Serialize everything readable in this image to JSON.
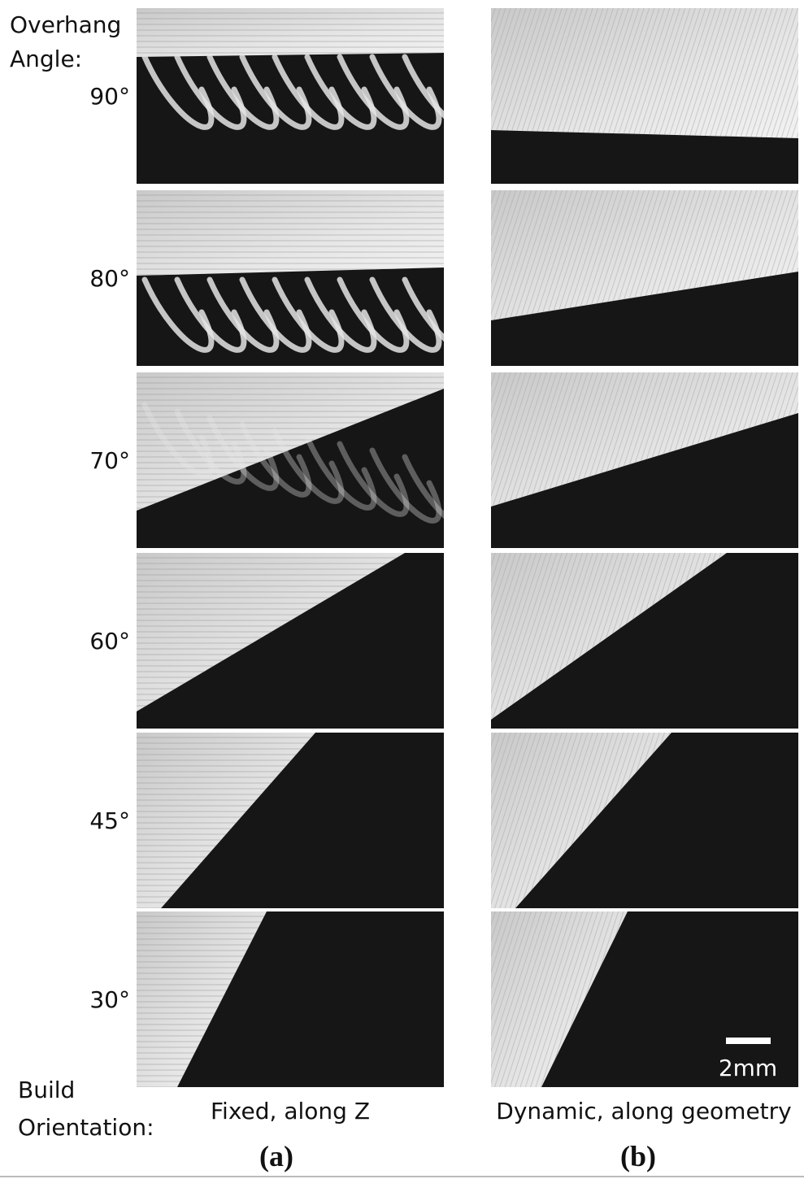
{
  "header": {
    "lines": [
      "Overhang",
      "Angle:"
    ]
  },
  "rows": [
    {
      "angle": "90°"
    },
    {
      "angle": "80°"
    },
    {
      "angle": "70°"
    },
    {
      "angle": "60°"
    },
    {
      "angle": "45°"
    },
    {
      "angle": "30°"
    }
  ],
  "columns": [
    {
      "caption": "Fixed, along Z",
      "label": "(a)"
    },
    {
      "caption": "Dynamic, along geometry",
      "label": "(b)"
    }
  ],
  "scale_bar": "2mm",
  "footer": {
    "lines": [
      "Build",
      "Orientation:"
    ]
  }
}
